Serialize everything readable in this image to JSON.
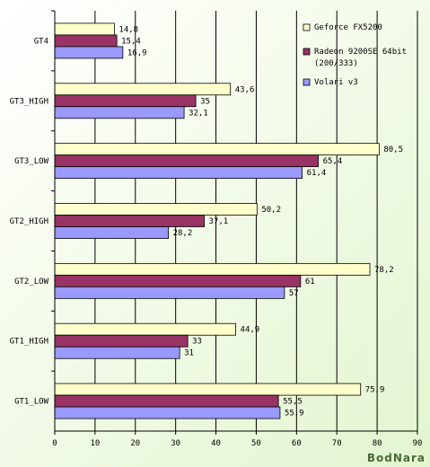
{
  "chart_data": {
    "type": "bar",
    "orientation": "horizontal",
    "categories": [
      "GT4",
      "GT3_HIGH",
      "GT3_LOW",
      "GT2_HIGH",
      "GT2_LOW",
      "GT1_HIGH",
      "GT1_LOW"
    ],
    "series": [
      {
        "name": "Geforce FX5200",
        "values": [
          14.8,
          43.6,
          80.5,
          50.2,
          78.2,
          44.9,
          75.9
        ],
        "color": "#ffffcc"
      },
      {
        "name": "Radeon 9200SE 64bit (200/333)",
        "values": [
          15.4,
          35,
          65.4,
          37.1,
          61,
          33,
          55.5
        ],
        "color": "#993366"
      },
      {
        "name": "Volari v3",
        "values": [
          16.9,
          32.1,
          61.4,
          28.2,
          57,
          31,
          55.9
        ],
        "color": "#9999ff"
      }
    ],
    "value_labels": [
      [
        "14,8",
        "43,6",
        "80,5",
        "50,2",
        "78,2",
        "44,9",
        "75,9"
      ],
      [
        "15,4",
        "35",
        "65,4",
        "37,1",
        "61",
        "33",
        "55,5"
      ],
      [
        "16,9",
        "32,1",
        "61,4",
        "28,2",
        "57",
        "31",
        "55,9"
      ]
    ],
    "xlim": [
      0,
      90
    ],
    "xticks": [
      "0",
      "10",
      "20",
      "30",
      "40",
      "50",
      "60",
      "70",
      "80",
      "90"
    ],
    "grid": true,
    "legend_position": "top-right",
    "legend_lines": [
      [
        "Geforce FX5200"
      ],
      [
        "Radeon 9200SE 64bit",
        "(200/333)"
      ],
      [
        "Volari v3"
      ]
    ]
  },
  "watermark": "BodNara"
}
